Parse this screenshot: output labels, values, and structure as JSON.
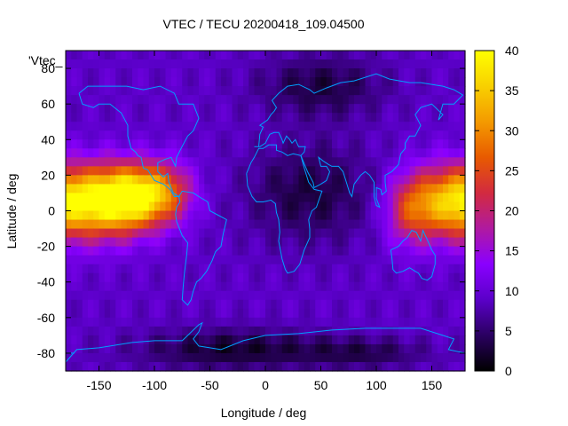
{
  "chart_data": {
    "type": "heatmap",
    "title": "VTEC / TECU 20200418_109.04500",
    "xlabel": "Longitude / deg",
    "ylabel": "Latitude / deg",
    "key_label": "'Vtec_",
    "xlim": [
      -180,
      180
    ],
    "ylim": [
      -90,
      90
    ],
    "x_ticks": [
      -150,
      -100,
      -50,
      0,
      50,
      100,
      150
    ],
    "y_ticks": [
      -80,
      -60,
      -40,
      -20,
      0,
      20,
      40,
      60,
      80
    ],
    "colorbar": {
      "range": [
        0,
        40
      ],
      "ticks": [
        0,
        5,
        10,
        15,
        20,
        25,
        30,
        35,
        40
      ]
    },
    "colormap": [
      "#000000",
      "#2a0060",
      "#5a00c8",
      "#8a00ff",
      "#b01aa0",
      "#d22a40",
      "#e85a00",
      "#f49a00",
      "#f8d000",
      "#ffff00"
    ],
    "coastline_color": "#00a0ff",
    "grid": false,
    "legend": "none",
    "field_blobs": [
      {
        "lon": -150,
        "lat": 5,
        "value": 33,
        "spread_lon": 28,
        "spread_lat": 14
      },
      {
        "lon": -120,
        "lat": 8,
        "value": 30,
        "spread_lon": 20,
        "spread_lat": 12
      },
      {
        "lon": -90,
        "lat": 10,
        "value": 24,
        "spread_lon": 18,
        "spread_lat": 12
      },
      {
        "lon": 165,
        "lat": 5,
        "value": 30,
        "spread_lon": 25,
        "spread_lat": 14
      },
      {
        "lon": 130,
        "lat": 0,
        "value": 20,
        "spread_lon": 15,
        "spread_lat": 14
      },
      {
        "lon": 50,
        "lat": 70,
        "value": -6,
        "spread_lon": 40,
        "spread_lat": 12
      },
      {
        "lon": -30,
        "lat": -78,
        "value": -7,
        "spread_lon": 60,
        "spread_lat": 8
      },
      {
        "lon": 90,
        "lat": -80,
        "value": -5,
        "spread_lon": 40,
        "spread_lat": 6
      },
      {
        "lon": 40,
        "lat": 10,
        "value": 3,
        "spread_lon": 40,
        "spread_lat": 20
      }
    ],
    "background_value": 9
  }
}
